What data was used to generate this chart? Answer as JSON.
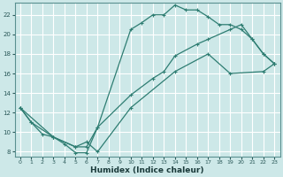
{
  "xlabel": "Humidex (Indice chaleur)",
  "bg_color": "#cde8e8",
  "grid_color": "#ffffff",
  "line_color": "#2e7d72",
  "xlim": [
    -0.5,
    23.5
  ],
  "ylim": [
    7.5,
    23.2
  ],
  "xticks": [
    0,
    1,
    2,
    3,
    4,
    5,
    6,
    7,
    8,
    9,
    10,
    11,
    12,
    13,
    14,
    15,
    16,
    17,
    18,
    19,
    20,
    21,
    22,
    23
  ],
  "yticks": [
    8,
    10,
    12,
    14,
    16,
    18,
    20,
    22
  ],
  "curve1_x": [
    0,
    1,
    2,
    3,
    4,
    5,
    6,
    7,
    10,
    11,
    12,
    13,
    14,
    15,
    16,
    17,
    18,
    19,
    20,
    21,
    22,
    23
  ],
  "curve1_y": [
    12.5,
    11.0,
    9.8,
    9.5,
    8.8,
    7.9,
    7.9,
    10.5,
    20.5,
    21.2,
    22.0,
    22.0,
    23.0,
    22.5,
    22.5,
    21.8,
    21.0,
    21.0,
    20.5,
    19.5,
    18.0,
    17.0
  ],
  "curve2_x": [
    0,
    1,
    3,
    5,
    6,
    7,
    10,
    12,
    13,
    14,
    16,
    17,
    19,
    20,
    21,
    22,
    23
  ],
  "curve2_y": [
    12.5,
    11.0,
    9.5,
    8.5,
    8.5,
    10.5,
    13.8,
    15.5,
    16.2,
    17.8,
    19.0,
    19.5,
    20.5,
    21.0,
    19.5,
    18.0,
    17.0
  ],
  "curve3_x": [
    0,
    3,
    5,
    6,
    7,
    10,
    14,
    17,
    19,
    22,
    23
  ],
  "curve3_y": [
    12.5,
    9.5,
    8.5,
    9.0,
    8.0,
    12.5,
    16.2,
    18.0,
    16.0,
    16.2,
    17.0
  ]
}
